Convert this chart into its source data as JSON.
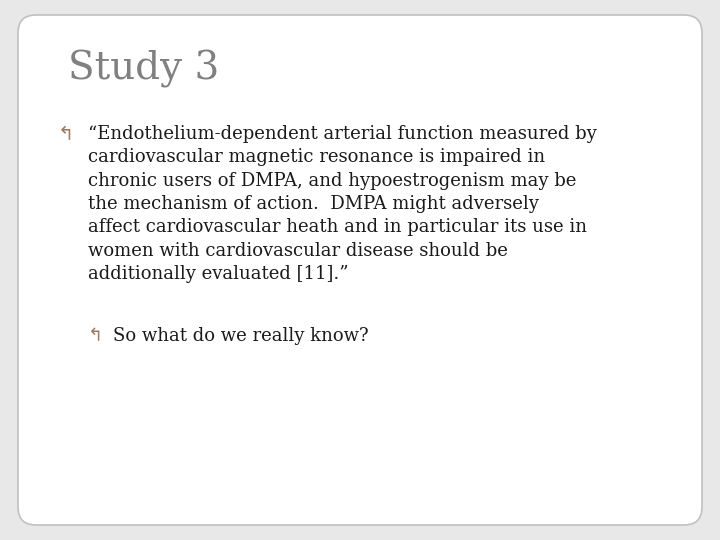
{
  "title": "Study 3",
  "title_color": "#808080",
  "title_fontsize": 28,
  "title_font": "serif",
  "background_color": "#ffffff",
  "slide_bg": "#e8e8e8",
  "border_color": "#c0c0c0",
  "bullet_color": "#a0785a",
  "text_color": "#1a1a1a",
  "bullet_symbol": "∞",
  "bullet1_text": "“Endothelium-dependent arterial function measured by\ncardiovascular magnetic resonance is impaired in\nchronic users of DMPA, and hypoestrogenism may be\nthe mechanism of action.  DMPA might adversely\naffect cardiovascular heath and in particular its use in\nwomen with cardiovascular disease should be\nadditionally evaluated [11].”",
  "bullet2_text": "So what do we really know?",
  "body_fontsize": 13.0,
  "sub_bullet_fontsize": 13.0
}
